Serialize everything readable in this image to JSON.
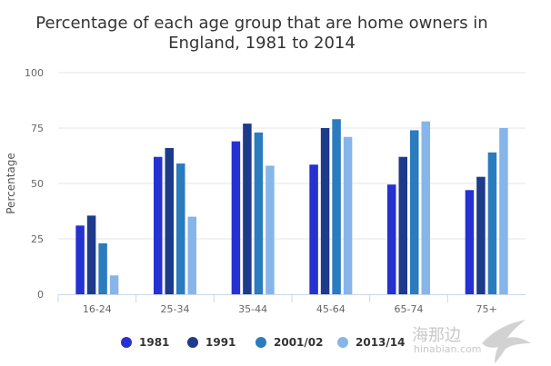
{
  "chart_data": {
    "type": "bar",
    "title_line1": "Percentage of each age group that are home owners in",
    "title_line2": "England, 1981 to 2014",
    "ylabel": "Percentage",
    "xlabel": "",
    "ylim": [
      0,
      100
    ],
    "yticks": [
      0,
      25,
      50,
      75,
      100
    ],
    "categories": [
      "16-24",
      "25-34",
      "35-44",
      "45-64",
      "65-74",
      "75+"
    ],
    "series": [
      {
        "name": "1981",
        "color": "#2531d0",
        "values": [
          31,
          62,
          69,
          58.5,
          49.5,
          47
        ]
      },
      {
        "name": "1991",
        "color": "#1e3a8a",
        "values": [
          35.5,
          66,
          77,
          75,
          62,
          53
        ]
      },
      {
        "name": "2001/02",
        "color": "#2b7bbf",
        "values": [
          23,
          59,
          73,
          79,
          74,
          64
        ]
      },
      {
        "name": "2013/14",
        "color": "#86b5ea",
        "values": [
          8.5,
          35,
          58,
          71,
          78,
          75
        ]
      }
    ],
    "grid": true,
    "legend_position": "bottom"
  },
  "watermark": {
    "text": "海那边",
    "subtext": "hinabian.com"
  }
}
